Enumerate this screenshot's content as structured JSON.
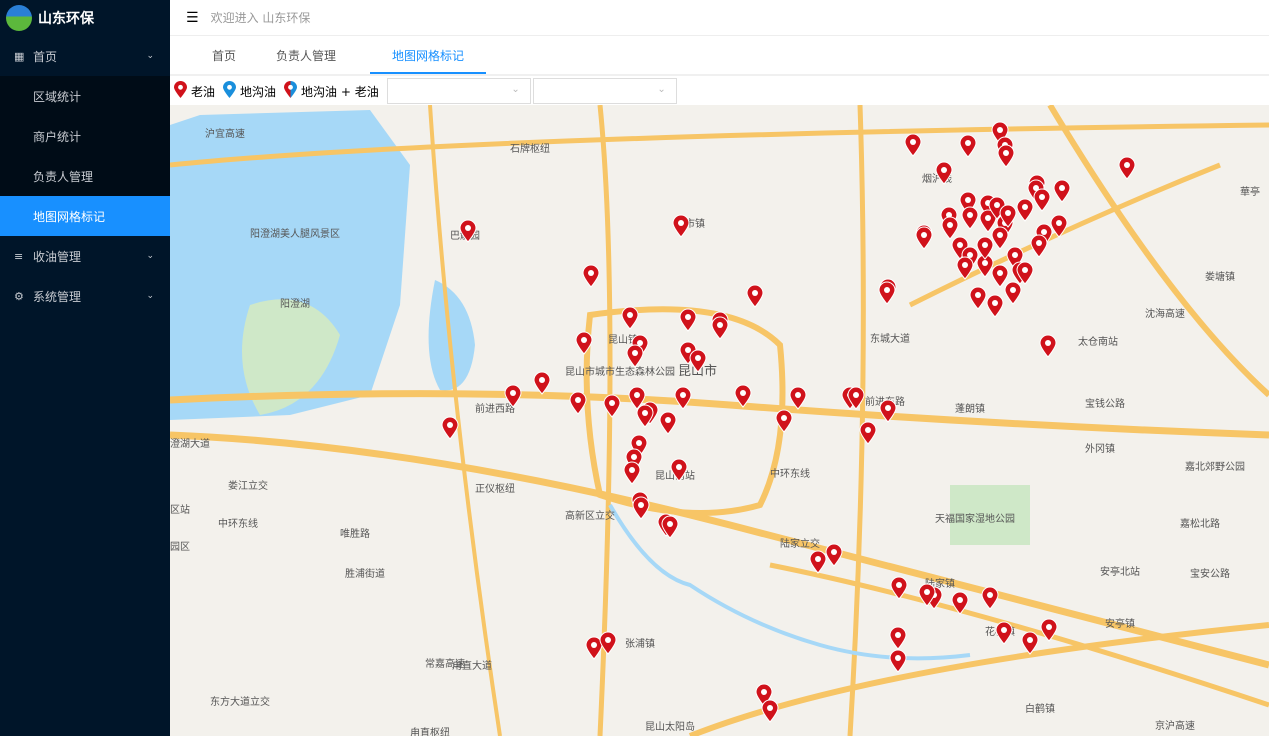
{
  "app": {
    "title": "山东环保",
    "welcome": "欢迎进入 山东环保"
  },
  "sidebar": {
    "items": [
      {
        "label": "首页",
        "icon": "grid-icon",
        "expandable": true
      },
      {
        "label": "区域统计",
        "sub": true
      },
      {
        "label": "商户统计",
        "sub": true
      },
      {
        "label": "负责人管理",
        "sub": true
      },
      {
        "label": "地图网格标记",
        "sub": true,
        "active": true
      },
      {
        "label": "收油管理",
        "icon": "list-icon",
        "expandable": true
      },
      {
        "label": "系统管理",
        "icon": "gear-icon",
        "expandable": true
      }
    ]
  },
  "tabs": [
    {
      "label": "首页"
    },
    {
      "label": "负责人管理"
    },
    {
      "label": "地图网格标记",
      "active": true
    }
  ],
  "legend": [
    {
      "label": "老油",
      "color": "#d0121b"
    },
    {
      "label": "地沟油",
      "color": "#1a8fdc"
    },
    {
      "label": "地沟油 + 老油",
      "color": "mixed"
    }
  ],
  "filters": [
    {
      "value": ""
    },
    {
      "value": ""
    }
  ],
  "map": {
    "labels": [
      "沪宜高速",
      "石牌枢纽",
      "阳澄湖美人腿风景区",
      "巴解园",
      "阳澄湖",
      "周市镇",
      "昆山镇",
      "昆山市城市生态森林公园",
      "昆山市",
      "前进西路",
      "前进东路",
      "澄湖大道",
      "正仪枢纽",
      "昆山南站",
      "高新区立交",
      "陆家立交",
      "中环东线",
      "唯胜路",
      "胜浦街道",
      "张浦镇",
      "甪直大道",
      "常嘉高速",
      "东方大道立交",
      "甪直枢纽",
      "昆山太阳岛",
      "东城大道",
      "烟沪线",
      "太仓南站",
      "沈海高速",
      "宝钱公路",
      "外冈镇",
      "嘉北郊野公园",
      "天福国家湿地公园",
      "安亭北站",
      "宝安公路",
      "嘉松北路",
      "花桥镇",
      "安亭镇",
      "白鹤镇",
      "京沪高速",
      "娄塘镇",
      "蓬朗镇",
      "華亭",
      "中环东线",
      "陆家镇",
      "园区",
      "区站",
      "娄江立交"
    ],
    "marker_color": "#d0121b"
  }
}
